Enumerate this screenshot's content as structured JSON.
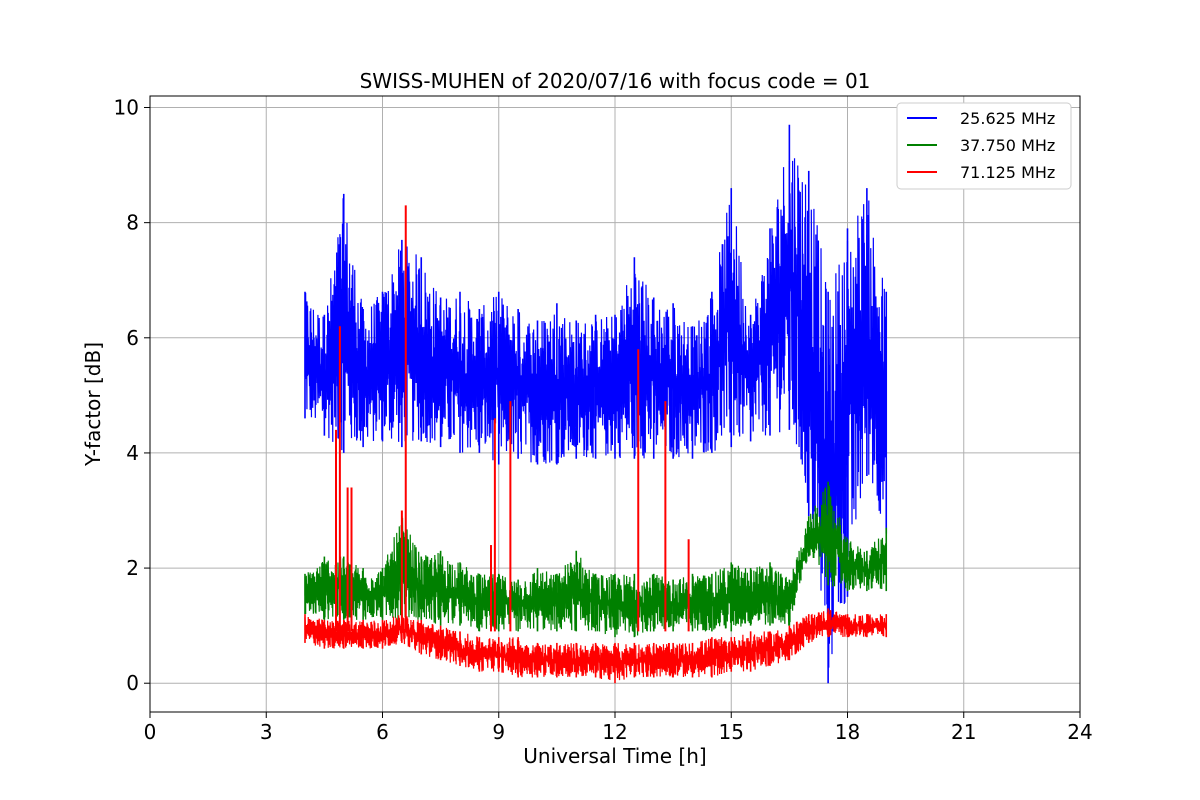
{
  "chart_data": {
    "type": "line",
    "title": "SWISS-MUHEN of 2020/07/16 with focus code = 01",
    "xlabel": "Universal Time [h]",
    "ylabel": "Y-factor [dB]",
    "xlim": [
      0,
      24
    ],
    "ylim": [
      -0.5,
      10.2
    ],
    "xticks": [
      0,
      3,
      6,
      9,
      12,
      15,
      18,
      21,
      24
    ],
    "yticks": [
      0,
      2,
      4,
      6,
      8,
      10
    ],
    "grid": true,
    "legend_position": "top-right",
    "series": [
      {
        "name": "25.625 MHz",
        "color": "#0000ff",
        "x": [
          4.0,
          4.5,
          5.0,
          5.5,
          6.0,
          6.5,
          7.0,
          7.5,
          8.0,
          8.5,
          9.0,
          9.5,
          10.0,
          10.5,
          11.0,
          11.5,
          12.0,
          12.5,
          13.0,
          13.5,
          14.0,
          14.5,
          15.0,
          15.5,
          16.0,
          16.5,
          17.0,
          17.5,
          18.0,
          18.5,
          19.0
        ],
        "y_max": [
          6.8,
          6.4,
          8.5,
          6.5,
          6.8,
          7.7,
          7.4,
          6.7,
          6.8,
          6.5,
          6.8,
          6.5,
          6.3,
          6.6,
          6.3,
          6.4,
          6.4,
          7.4,
          6.7,
          6.6,
          6.2,
          6.8,
          8.6,
          6.4,
          7.9,
          9.7,
          8.9,
          6.8,
          7.9,
          8.6,
          6.8
        ],
        "y_min": [
          4.6,
          4.3,
          4.0,
          4.1,
          4.2,
          4.1,
          4.2,
          4.1,
          4.0,
          4.0,
          3.8,
          3.9,
          3.8,
          3.8,
          3.9,
          3.9,
          3.9,
          3.9,
          3.9,
          3.9,
          3.9,
          4.0,
          4.1,
          4.2,
          4.3,
          4.4,
          2.9,
          0.0,
          1.5,
          3.6,
          2.6
        ]
      },
      {
        "name": "37.750 MHz",
        "color": "#008000",
        "x": [
          4.0,
          4.5,
          5.0,
          5.5,
          6.0,
          6.5,
          7.0,
          7.5,
          8.0,
          8.5,
          9.0,
          9.5,
          10.0,
          10.5,
          11.0,
          11.5,
          12.0,
          12.5,
          13.0,
          13.5,
          14.0,
          14.5,
          15.0,
          15.5,
          16.0,
          16.5,
          17.0,
          17.5,
          18.0,
          18.5,
          19.0
        ],
        "y_max": [
          1.9,
          2.2,
          2.2,
          2.0,
          2.0,
          2.9,
          2.2,
          2.3,
          2.1,
          1.9,
          1.9,
          1.8,
          2.0,
          1.9,
          2.3,
          1.9,
          1.9,
          1.9,
          1.9,
          1.8,
          1.9,
          1.9,
          2.1,
          2.0,
          2.1,
          1.8,
          2.9,
          3.5,
          2.5,
          2.3,
          2.7
        ],
        "y_min": [
          1.2,
          1.1,
          1.1,
          1.1,
          1.1,
          1.1,
          1.1,
          1.0,
          1.0,
          0.9,
          0.9,
          0.9,
          0.9,
          0.9,
          0.9,
          0.9,
          0.8,
          0.8,
          0.9,
          0.9,
          0.9,
          0.9,
          0.9,
          1.0,
          1.0,
          1.0,
          2.2,
          1.7,
          1.6,
          1.6,
          1.6
        ]
      },
      {
        "name": "71.125 MHz",
        "color": "#ff0000",
        "x": [
          4.0,
          4.5,
          5.0,
          5.5,
          6.0,
          6.5,
          7.0,
          7.5,
          8.0,
          8.5,
          9.0,
          9.5,
          10.0,
          10.5,
          11.0,
          11.5,
          12.0,
          12.5,
          13.0,
          13.5,
          14.0,
          14.5,
          15.0,
          15.5,
          16.0,
          16.5,
          17.0,
          17.5,
          18.0,
          18.5,
          19.0
        ],
        "y_max": [
          1.2,
          1.1,
          1.1,
          1.1,
          1.1,
          1.2,
          1.1,
          1.0,
          0.9,
          0.8,
          0.8,
          0.8,
          0.7,
          0.7,
          0.7,
          0.7,
          0.7,
          0.7,
          0.7,
          0.7,
          0.7,
          0.8,
          0.8,
          0.9,
          0.9,
          1.0,
          1.2,
          1.3,
          1.2,
          1.2,
          1.2
        ],
        "y_min": [
          0.7,
          0.6,
          0.6,
          0.6,
          0.6,
          0.7,
          0.5,
          0.4,
          0.3,
          0.2,
          0.2,
          0.1,
          0.1,
          0.1,
          0.1,
          0.1,
          0.0,
          0.1,
          0.1,
          0.1,
          0.1,
          0.1,
          0.2,
          0.2,
          0.3,
          0.4,
          0.7,
          0.8,
          0.8,
          0.8,
          0.8
        ],
        "spikes": [
          {
            "x": 4.8,
            "y": 4.4
          },
          {
            "x": 4.9,
            "y": 6.2
          },
          {
            "x": 5.1,
            "y": 3.4
          },
          {
            "x": 5.2,
            "y": 3.4
          },
          {
            "x": 6.5,
            "y": 3.0
          },
          {
            "x": 6.6,
            "y": 8.3
          },
          {
            "x": 8.8,
            "y": 2.4
          },
          {
            "x": 8.9,
            "y": 4.6
          },
          {
            "x": 9.3,
            "y": 4.9
          },
          {
            "x": 12.6,
            "y": 5.8
          },
          {
            "x": 13.3,
            "y": 4.9
          },
          {
            "x": 13.9,
            "y": 2.5
          }
        ]
      }
    ]
  }
}
